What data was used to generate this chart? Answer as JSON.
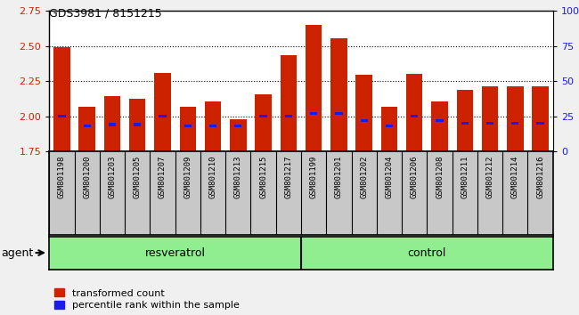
{
  "title": "GDS3981 / 8151215",
  "samples": [
    "GSM801198",
    "GSM801200",
    "GSM801203",
    "GSM801205",
    "GSM801207",
    "GSM801209",
    "GSM801210",
    "GSM801213",
    "GSM801215",
    "GSM801217",
    "GSM801199",
    "GSM801201",
    "GSM801202",
    "GSM801204",
    "GSM801206",
    "GSM801208",
    "GSM801211",
    "GSM801212",
    "GSM801214",
    "GSM801216"
  ],
  "transformed_counts": [
    2.495,
    2.065,
    2.145,
    2.125,
    2.31,
    2.065,
    2.105,
    1.975,
    2.155,
    2.435,
    2.65,
    2.555,
    2.295,
    2.065,
    2.3,
    2.105,
    2.185,
    2.215,
    2.215,
    2.215
  ],
  "percentile_ranks": [
    25.0,
    18.0,
    19.0,
    19.0,
    25.0,
    18.0,
    18.0,
    18.0,
    25.0,
    25.0,
    27.0,
    27.0,
    22.0,
    18.0,
    25.0,
    22.0,
    20.0,
    20.0,
    20.0,
    20.0
  ],
  "group_labels": [
    "resveratrol",
    "control"
  ],
  "group_sizes": [
    10,
    10
  ],
  "bar_color": "#cc2200",
  "blue_color": "#1a1aee",
  "bar_bottom": 1.75,
  "ylim_left": [
    1.75,
    2.75
  ],
  "ylim_right": [
    0,
    100
  ],
  "yticks_left": [
    1.75,
    2.0,
    2.25,
    2.5,
    2.75
  ],
  "yticks_right": [
    0,
    25,
    50,
    75,
    100
  ],
  "grid_values": [
    2.0,
    2.25,
    2.5
  ],
  "tick_bg_color": "#c8c8c8",
  "group_color": "#90ee90",
  "plot_bg_color": "#ffffff",
  "fig_bg_color": "#f0f0f0",
  "agent_label": "agent"
}
